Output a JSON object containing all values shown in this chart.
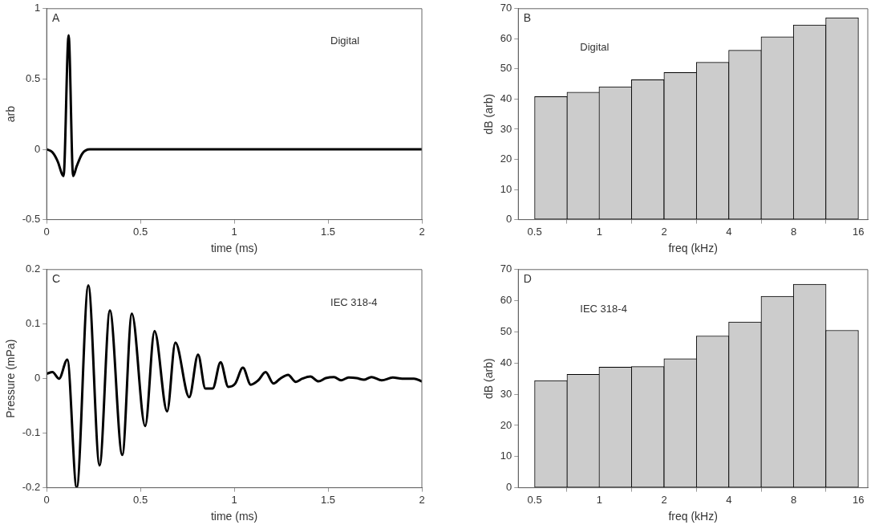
{
  "chart_data": [
    {
      "type": "line",
      "xlabel": "time (ms)",
      "ylabel": "arb",
      "annotations": [
        "A",
        "Digital"
      ],
      "xlim": [
        0,
        2
      ],
      "xticks": [
        0,
        0.5,
        1,
        1.5,
        2
      ],
      "ylim": [
        -0.5,
        1
      ],
      "yticks": [
        -0.5,
        0,
        0.5,
        1
      ],
      "series": [
        {
          "color": "#000000",
          "x": [
            0,
            0.03,
            0.06,
            0.08,
            0.09,
            0.117,
            0.141,
            0.16,
            0.19,
            0.23,
            2
          ],
          "values": [
            0,
            -0.02,
            -0.09,
            -0.17,
            -0.19,
            0.81,
            -0.19,
            -0.12,
            -0.03,
            0,
            0
          ]
        }
      ]
    },
    {
      "type": "histogram",
      "xlabel": "freq (kHz)",
      "ylabel": "dB (arb)",
      "annotations": [
        "B",
        "Digital"
      ],
      "log": "x",
      "xlim": [
        0.42,
        17.7
      ],
      "xticks": [
        0.5,
        1,
        2,
        4,
        8,
        16
      ],
      "ylim": [
        0,
        70
      ],
      "yticks": [
        0,
        10,
        20,
        30,
        40,
        50,
        60,
        70
      ],
      "color": "#cccccc",
      "bins": [
        0.5,
        0.71,
        1,
        1.41,
        2,
        2.83,
        4,
        5.66,
        8,
        11.3,
        16
      ],
      "values": [
        40.8,
        42.3,
        44.1,
        46.4,
        48.8,
        52.2,
        56.2,
        60.7,
        64.6,
        67.0
      ]
    },
    {
      "type": "line",
      "xlabel": "time (ms)",
      "ylabel": "Pressure (mPa)",
      "annotations": [
        "C",
        "IEC 318-4"
      ],
      "xlim": [
        0,
        2
      ],
      "xticks": [
        0,
        0.5,
        1,
        1.5,
        2
      ],
      "ylim": [
        -0.2,
        0.2
      ],
      "yticks": [
        -0.2,
        -0.1,
        0,
        0.1,
        0.2
      ],
      "series": [
        {
          "color": "#000000",
          "x": [
            0,
            0.031,
            0.066,
            0.11,
            0.16,
            0.222,
            0.282,
            0.337,
            0.403,
            0.454,
            0.525,
            0.575,
            0.642,
            0.686,
            0.76,
            0.807,
            0.846,
            0.885,
            0.927,
            0.968,
            1.005,
            1.046,
            1.088,
            1.128,
            1.167,
            1.209,
            1.245,
            1.287,
            1.328,
            1.363,
            1.406,
            1.449,
            1.488,
            1.532,
            1.569,
            1.61,
            1.652,
            1.691,
            1.731,
            1.786,
            1.845,
            1.895,
            1.958,
            2
          ],
          "values": [
            0.009,
            0.012,
            0,
            0.035,
            -0.2,
            0.171,
            -0.159,
            0.125,
            -0.14,
            0.119,
            -0.087,
            0.087,
            -0.06,
            0.066,
            -0.034,
            0.044,
            -0.018,
            -0.018,
            0.03,
            -0.015,
            -0.009,
            0.02,
            -0.011,
            -0.003,
            0.012,
            -0.009,
            0,
            0.007,
            -0.006,
            0,
            0.004,
            -0.005,
            0.001,
            0.003,
            -0.003,
            0.002,
            0.001,
            -0.002,
            0.003,
            -0.003,
            0.002,
            0,
            0,
            -0.005
          ]
        }
      ]
    },
    {
      "type": "histogram",
      "xlabel": "freq (kHz)",
      "ylabel": "dB (arb)",
      "annotations": [
        "D",
        "IEC 318-4"
      ],
      "log": "x",
      "xlim": [
        0.42,
        17.7
      ],
      "xticks": [
        0.5,
        1,
        2,
        4,
        8,
        16
      ],
      "ylim": [
        0,
        70
      ],
      "yticks": [
        0,
        10,
        20,
        30,
        40,
        50,
        60,
        70
      ],
      "color": "#cccccc",
      "bins": [
        0.5,
        0.71,
        1,
        1.41,
        2,
        2.83,
        4,
        5.66,
        8,
        11.3,
        16
      ],
      "values": [
        34.4,
        36.4,
        38.7,
        38.9,
        41.4,
        48.7,
        53.2,
        61.4,
        65.3,
        50.5
      ]
    }
  ]
}
